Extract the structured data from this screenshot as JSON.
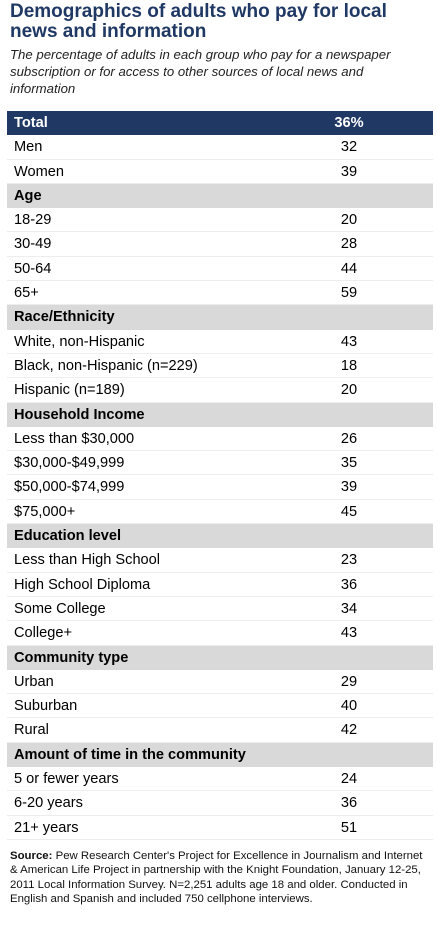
{
  "title": "Demographics of adults who pay for local news and information",
  "subtitle": "The percentage of adults in each group who pay for a newspaper subscription or for access to other sources of local news and information",
  "source_label": "Source:",
  "source_text": "Pew Research Center's Project for Excellence in Journalism and Internet & American Life Project in partnership with the Knight Foundation, January 12-25, 2011 Local Information Survey. N=2,251 adults age 18 and older. Conducted in English and Spanish and included 750 cellphone interviews.",
  "chart_data": {
    "type": "table",
    "title": "Demographics of adults who pay for local news and information",
    "rows": [
      {
        "kind": "total",
        "label": "Total",
        "value": "36%"
      },
      {
        "kind": "data",
        "label": "Men",
        "value": "32"
      },
      {
        "kind": "data",
        "label": "Women",
        "value": "39"
      },
      {
        "kind": "section",
        "label": "Age",
        "value": ""
      },
      {
        "kind": "data",
        "label": "18-29",
        "value": "20"
      },
      {
        "kind": "data",
        "label": "30-49",
        "value": "28"
      },
      {
        "kind": "data",
        "label": "50-64",
        "value": "44"
      },
      {
        "kind": "data",
        "label": "65+",
        "value": "59"
      },
      {
        "kind": "section",
        "label": "Race/Ethnicity",
        "value": ""
      },
      {
        "kind": "data",
        "label": "White, non-Hispanic",
        "value": "43"
      },
      {
        "kind": "data",
        "label": "Black, non-Hispanic (n=229)",
        "value": "18"
      },
      {
        "kind": "data",
        "label": "Hispanic (n=189)",
        "value": "20"
      },
      {
        "kind": "section",
        "label": "Household Income",
        "value": ""
      },
      {
        "kind": "data",
        "label": "Less than $30,000",
        "value": "26"
      },
      {
        "kind": "data",
        "label": "$30,000-$49,999",
        "value": "35"
      },
      {
        "kind": "data",
        "label": "$50,000-$74,999",
        "value": "39"
      },
      {
        "kind": "data",
        "label": "$75,000+",
        "value": "45"
      },
      {
        "kind": "section",
        "label": "Education level",
        "value": ""
      },
      {
        "kind": "data",
        "label": "Less than High School",
        "value": "23"
      },
      {
        "kind": "data",
        "label": "High School Diploma",
        "value": "36"
      },
      {
        "kind": "data",
        "label": "Some College",
        "value": "34"
      },
      {
        "kind": "data",
        "label": "College+",
        "value": "43"
      },
      {
        "kind": "section",
        "label": "Community type",
        "value": ""
      },
      {
        "kind": "data",
        "label": "Urban",
        "value": "29"
      },
      {
        "kind": "data",
        "label": "Suburban",
        "value": "40"
      },
      {
        "kind": "data",
        "label": "Rural",
        "value": "42"
      },
      {
        "kind": "section",
        "label": "Amount of time in the community",
        "value": ""
      },
      {
        "kind": "data",
        "label": "5 or fewer years",
        "value": "24"
      },
      {
        "kind": "data",
        "label": "6-20 years",
        "value": "36"
      },
      {
        "kind": "data",
        "label": "21+ years",
        "value": "51"
      }
    ]
  }
}
